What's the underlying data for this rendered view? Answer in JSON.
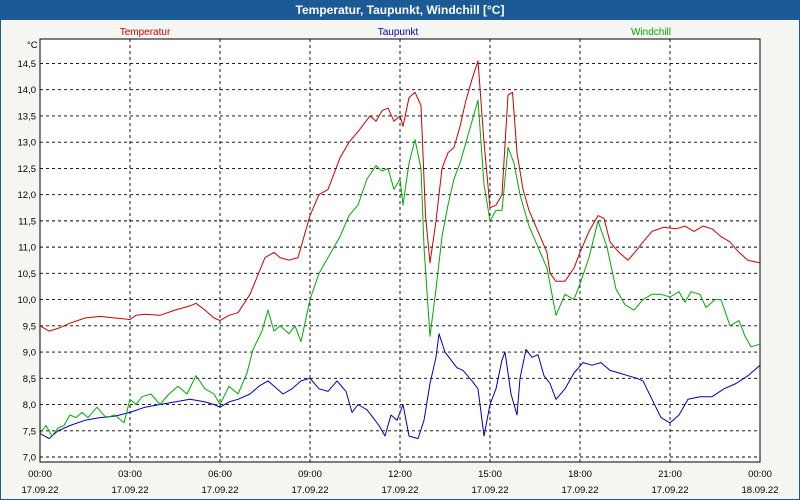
{
  "title": "Temperatur, Taupunkt, Windchill [°C]",
  "colors": {
    "titlebar": "#1c5a96",
    "background": "#f5f5f2",
    "grid": "#000000"
  },
  "chart_data": {
    "type": "line",
    "title": "Temperatur, Taupunkt, Windchill [°C]",
    "ylabel": "°C",
    "ylim": [
      7.0,
      14.8
    ],
    "y_ticks": [
      "7,0",
      "7,5",
      "8,0",
      "8,5",
      "9,0",
      "9,5",
      "10,0",
      "10,5",
      "11,0",
      "11,5",
      "12,0",
      "12,5",
      "13,0",
      "13,5",
      "14,0",
      "14,5"
    ],
    "x_ticks": [
      {
        "time": "00:00",
        "date": "17.09.22"
      },
      {
        "time": "03:00",
        "date": "17.09.22"
      },
      {
        "time": "06:00",
        "date": "17.09.22"
      },
      {
        "time": "09:00",
        "date": "17.09.22"
      },
      {
        "time": "12:00",
        "date": "17.09.22"
      },
      {
        "time": "15:00",
        "date": "17.09.22"
      },
      {
        "time": "18:00",
        "date": "17.09.22"
      },
      {
        "time": "21:00",
        "date": "17.09.22"
      },
      {
        "time": "00:00",
        "date": "18.09.22"
      }
    ],
    "x_range_hours": [
      0,
      24
    ],
    "grid": true,
    "legend_placement": "top",
    "series": [
      {
        "name": "Temperatur",
        "color": "#cc0000",
        "points": [
          [
            0.0,
            9.5
          ],
          [
            0.3,
            9.4
          ],
          [
            0.6,
            9.45
          ],
          [
            1.0,
            9.55
          ],
          [
            1.5,
            9.65
          ],
          [
            2.0,
            9.68
          ],
          [
            2.5,
            9.65
          ],
          [
            3.0,
            9.62
          ],
          [
            3.2,
            9.7
          ],
          [
            3.5,
            9.72
          ],
          [
            4.0,
            9.7
          ],
          [
            4.5,
            9.8
          ],
          [
            5.0,
            9.88
          ],
          [
            5.2,
            9.93
          ],
          [
            5.5,
            9.8
          ],
          [
            5.8,
            9.65
          ],
          [
            6.0,
            9.6
          ],
          [
            6.3,
            9.7
          ],
          [
            6.6,
            9.75
          ],
          [
            7.0,
            10.1
          ],
          [
            7.5,
            10.8
          ],
          [
            7.8,
            10.9
          ],
          [
            8.0,
            10.8
          ],
          [
            8.3,
            10.75
          ],
          [
            8.6,
            10.8
          ],
          [
            9.0,
            11.6
          ],
          [
            9.3,
            12.0
          ],
          [
            9.6,
            12.1
          ],
          [
            10.0,
            12.7
          ],
          [
            10.3,
            13.0
          ],
          [
            10.6,
            13.2
          ],
          [
            11.0,
            13.5
          ],
          [
            11.2,
            13.4
          ],
          [
            11.4,
            13.6
          ],
          [
            11.6,
            13.65
          ],
          [
            11.8,
            13.4
          ],
          [
            12.0,
            13.5
          ],
          [
            12.1,
            13.3
          ],
          [
            12.3,
            13.85
          ],
          [
            12.5,
            13.95
          ],
          [
            12.7,
            13.7
          ],
          [
            12.85,
            11.6
          ],
          [
            13.0,
            10.7
          ],
          [
            13.2,
            11.5
          ],
          [
            13.4,
            12.5
          ],
          [
            13.6,
            12.8
          ],
          [
            13.8,
            12.9
          ],
          [
            14.0,
            13.3
          ],
          [
            14.2,
            13.8
          ],
          [
            14.4,
            14.2
          ],
          [
            14.6,
            14.55
          ],
          [
            14.8,
            13.0
          ],
          [
            15.0,
            11.75
          ],
          [
            15.2,
            11.8
          ],
          [
            15.4,
            12.0
          ],
          [
            15.6,
            13.9
          ],
          [
            15.75,
            13.95
          ],
          [
            15.9,
            12.8
          ],
          [
            16.1,
            12.1
          ],
          [
            16.3,
            11.7
          ],
          [
            16.6,
            11.3
          ],
          [
            16.9,
            10.9
          ],
          [
            17.0,
            10.5
          ],
          [
            17.2,
            10.35
          ],
          [
            17.5,
            10.35
          ],
          [
            17.8,
            10.6
          ],
          [
            18.0,
            10.9
          ],
          [
            18.3,
            11.3
          ],
          [
            18.6,
            11.6
          ],
          [
            18.8,
            11.55
          ],
          [
            19.0,
            11.1
          ],
          [
            19.3,
            10.9
          ],
          [
            19.6,
            10.75
          ],
          [
            19.9,
            10.95
          ],
          [
            20.1,
            11.1
          ],
          [
            20.4,
            11.3
          ],
          [
            20.8,
            11.38
          ],
          [
            21.2,
            11.35
          ],
          [
            21.5,
            11.4
          ],
          [
            21.8,
            11.3
          ],
          [
            22.1,
            11.4
          ],
          [
            22.4,
            11.35
          ],
          [
            22.7,
            11.2
          ],
          [
            23.0,
            11.1
          ],
          [
            23.3,
            10.9
          ],
          [
            23.6,
            10.75
          ],
          [
            24.0,
            10.7
          ]
        ]
      },
      {
        "name": "Taupunkt",
        "color": "#0000bb",
        "points": [
          [
            0.0,
            7.45
          ],
          [
            0.3,
            7.35
          ],
          [
            0.6,
            7.5
          ],
          [
            1.0,
            7.6
          ],
          [
            1.5,
            7.7
          ],
          [
            2.0,
            7.75
          ],
          [
            2.5,
            7.78
          ],
          [
            3.0,
            7.85
          ],
          [
            3.5,
            7.95
          ],
          [
            4.0,
            8.0
          ],
          [
            4.5,
            8.05
          ],
          [
            5.0,
            8.1
          ],
          [
            5.5,
            8.05
          ],
          [
            5.8,
            8.0
          ],
          [
            6.0,
            7.95
          ],
          [
            6.3,
            8.05
          ],
          [
            6.6,
            8.1
          ],
          [
            7.0,
            8.2
          ],
          [
            7.3,
            8.35
          ],
          [
            7.6,
            8.45
          ],
          [
            7.9,
            8.3
          ],
          [
            8.1,
            8.2
          ],
          [
            8.4,
            8.3
          ],
          [
            8.7,
            8.45
          ],
          [
            9.0,
            8.5
          ],
          [
            9.3,
            8.3
          ],
          [
            9.6,
            8.25
          ],
          [
            9.9,
            8.45
          ],
          [
            10.2,
            8.25
          ],
          [
            10.4,
            7.85
          ],
          [
            10.6,
            8.0
          ],
          [
            10.9,
            7.9
          ],
          [
            11.1,
            7.75
          ],
          [
            11.3,
            7.6
          ],
          [
            11.5,
            7.4
          ],
          [
            11.7,
            7.8
          ],
          [
            11.9,
            7.7
          ],
          [
            12.1,
            8.0
          ],
          [
            12.3,
            7.4
          ],
          [
            12.6,
            7.35
          ],
          [
            12.8,
            7.7
          ],
          [
            13.0,
            8.4
          ],
          [
            13.2,
            8.9
          ],
          [
            13.3,
            9.35
          ],
          [
            13.5,
            9.0
          ],
          [
            13.7,
            8.85
          ],
          [
            13.9,
            8.7
          ],
          [
            14.1,
            8.65
          ],
          [
            14.4,
            8.45
          ],
          [
            14.6,
            8.3
          ],
          [
            14.8,
            7.4
          ],
          [
            15.0,
            8.0
          ],
          [
            15.2,
            8.3
          ],
          [
            15.4,
            8.85
          ],
          [
            15.5,
            9.0
          ],
          [
            15.7,
            8.2
          ],
          [
            15.9,
            7.8
          ],
          [
            16.0,
            8.5
          ],
          [
            16.2,
            9.05
          ],
          [
            16.4,
            8.9
          ],
          [
            16.6,
            8.95
          ],
          [
            16.8,
            8.55
          ],
          [
            17.0,
            8.4
          ],
          [
            17.2,
            8.1
          ],
          [
            17.5,
            8.3
          ],
          [
            17.8,
            8.6
          ],
          [
            18.1,
            8.8
          ],
          [
            18.4,
            8.75
          ],
          [
            18.7,
            8.8
          ],
          [
            19.0,
            8.65
          ],
          [
            19.3,
            8.6
          ],
          [
            19.6,
            8.55
          ],
          [
            19.9,
            8.5
          ],
          [
            20.1,
            8.45
          ],
          [
            20.4,
            8.1
          ],
          [
            20.7,
            7.75
          ],
          [
            21.0,
            7.65
          ],
          [
            21.3,
            7.8
          ],
          [
            21.6,
            8.1
          ],
          [
            22.0,
            8.15
          ],
          [
            22.4,
            8.15
          ],
          [
            22.8,
            8.3
          ],
          [
            23.2,
            8.4
          ],
          [
            23.6,
            8.55
          ],
          [
            24.0,
            8.75
          ]
        ]
      },
      {
        "name": "Windchill",
        "color": "#00aa00",
        "points": [
          [
            0.0,
            7.45
          ],
          [
            0.2,
            7.6
          ],
          [
            0.4,
            7.4
          ],
          [
            0.6,
            7.55
          ],
          [
            0.8,
            7.6
          ],
          [
            1.0,
            7.8
          ],
          [
            1.2,
            7.75
          ],
          [
            1.4,
            7.85
          ],
          [
            1.6,
            7.75
          ],
          [
            1.9,
            7.95
          ],
          [
            2.2,
            7.75
          ],
          [
            2.5,
            7.8
          ],
          [
            2.8,
            7.65
          ],
          [
            3.0,
            8.1
          ],
          [
            3.2,
            8.0
          ],
          [
            3.4,
            8.15
          ],
          [
            3.7,
            8.2
          ],
          [
            4.0,
            8.0
          ],
          [
            4.3,
            8.2
          ],
          [
            4.6,
            8.35
          ],
          [
            4.9,
            8.2
          ],
          [
            5.2,
            8.55
          ],
          [
            5.5,
            8.3
          ],
          [
            5.8,
            8.2
          ],
          [
            6.0,
            8.0
          ],
          [
            6.3,
            8.35
          ],
          [
            6.6,
            8.2
          ],
          [
            6.9,
            8.6
          ],
          [
            7.1,
            9.05
          ],
          [
            7.4,
            9.4
          ],
          [
            7.6,
            9.8
          ],
          [
            7.8,
            9.4
          ],
          [
            8.0,
            9.5
          ],
          [
            8.3,
            9.35
          ],
          [
            8.5,
            9.5
          ],
          [
            8.7,
            9.2
          ],
          [
            9.0,
            10.0
          ],
          [
            9.3,
            10.5
          ],
          [
            9.6,
            10.8
          ],
          [
            10.0,
            11.2
          ],
          [
            10.3,
            11.6
          ],
          [
            10.6,
            11.8
          ],
          [
            10.9,
            12.3
          ],
          [
            11.2,
            12.55
          ],
          [
            11.4,
            12.45
          ],
          [
            11.6,
            12.5
          ],
          [
            11.8,
            12.1
          ],
          [
            12.0,
            12.3
          ],
          [
            12.1,
            11.8
          ],
          [
            12.3,
            12.6
          ],
          [
            12.5,
            13.05
          ],
          [
            12.7,
            12.5
          ],
          [
            12.8,
            11.0
          ],
          [
            13.0,
            9.3
          ],
          [
            13.2,
            10.2
          ],
          [
            13.4,
            11.2
          ],
          [
            13.6,
            11.8
          ],
          [
            13.8,
            12.3
          ],
          [
            14.0,
            12.6
          ],
          [
            14.3,
            13.2
          ],
          [
            14.6,
            13.8
          ],
          [
            14.8,
            12.2
          ],
          [
            15.0,
            11.5
          ],
          [
            15.2,
            11.7
          ],
          [
            15.4,
            11.7
          ],
          [
            15.6,
            12.9
          ],
          [
            15.8,
            12.6
          ],
          [
            16.0,
            12.0
          ],
          [
            16.3,
            11.4
          ],
          [
            16.6,
            11.0
          ],
          [
            16.9,
            10.6
          ],
          [
            17.2,
            9.7
          ],
          [
            17.5,
            10.1
          ],
          [
            17.8,
            10.0
          ],
          [
            18.0,
            10.3
          ],
          [
            18.3,
            10.8
          ],
          [
            18.6,
            11.5
          ],
          [
            18.9,
            11.0
          ],
          [
            19.2,
            10.2
          ],
          [
            19.5,
            9.9
          ],
          [
            19.8,
            9.8
          ],
          [
            20.1,
            10.0
          ],
          [
            20.4,
            10.1
          ],
          [
            20.7,
            10.1
          ],
          [
            21.0,
            10.05
          ],
          [
            21.3,
            10.15
          ],
          [
            21.5,
            9.95
          ],
          [
            21.7,
            10.15
          ],
          [
            22.0,
            10.1
          ],
          [
            22.2,
            9.85
          ],
          [
            22.5,
            10.0
          ],
          [
            22.7,
            10.0
          ],
          [
            23.0,
            9.5
          ],
          [
            23.3,
            9.6
          ],
          [
            23.5,
            9.3
          ],
          [
            23.7,
            9.1
          ],
          [
            24.0,
            9.15
          ]
        ]
      }
    ]
  }
}
